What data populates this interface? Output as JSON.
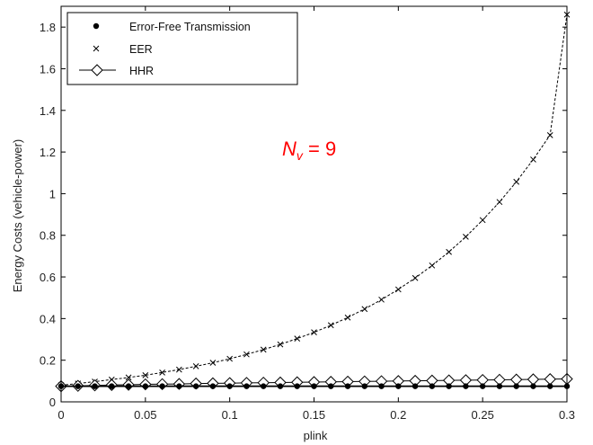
{
  "chart_data": {
    "type": "line",
    "title": "",
    "xlabel": "plink",
    "ylabel": "Energy Costs (vehicle-power)",
    "xlim": [
      0,
      0.3
    ],
    "ylim": [
      0,
      1.9
    ],
    "xticks": [
      0,
      0.05,
      0.1,
      0.15,
      0.2,
      0.25,
      0.3
    ],
    "xtick_labels": [
      "0",
      "0.05",
      "0.1",
      "0.15",
      "0.2",
      "0.25",
      "0.3"
    ],
    "yticks": [
      0,
      0.2,
      0.4,
      0.6,
      0.8,
      1.0,
      1.2,
      1.4,
      1.6,
      1.8
    ],
    "ytick_labels": [
      "0",
      "0.2",
      "0.4",
      "0.6",
      "0.8",
      "1",
      "1.2",
      "1.4",
      "1.6",
      "1.8"
    ],
    "grid": false,
    "legend_position": "top-left",
    "annotation": {
      "prefix": "N",
      "subscript": "v",
      "suffix": " = 9",
      "color": "#ff0000"
    },
    "series": [
      {
        "name": "Error-Free Transmission",
        "marker": "dot",
        "line": "solid",
        "x": [
          0,
          0.01,
          0.02,
          0.03,
          0.04,
          0.05,
          0.06,
          0.07,
          0.08,
          0.09,
          0.1,
          0.11,
          0.12,
          0.13,
          0.14,
          0.15,
          0.16,
          0.17,
          0.18,
          0.19,
          0.2,
          0.21,
          0.22,
          0.23,
          0.24,
          0.25,
          0.26,
          0.27,
          0.28,
          0.29,
          0.3
        ],
        "y": [
          0.075,
          0.075,
          0.075,
          0.075,
          0.075,
          0.075,
          0.075,
          0.075,
          0.075,
          0.075,
          0.075,
          0.075,
          0.075,
          0.075,
          0.075,
          0.075,
          0.075,
          0.075,
          0.075,
          0.075,
          0.075,
          0.075,
          0.075,
          0.075,
          0.075,
          0.075,
          0.075,
          0.075,
          0.075,
          0.075,
          0.075
        ]
      },
      {
        "name": "EER",
        "marker": "x",
        "line": "dashed",
        "x": [
          0,
          0.01,
          0.02,
          0.03,
          0.04,
          0.05,
          0.06,
          0.07,
          0.08,
          0.09,
          0.1,
          0.11,
          0.12,
          0.13,
          0.14,
          0.15,
          0.16,
          0.17,
          0.18,
          0.19,
          0.2,
          0.21,
          0.22,
          0.23,
          0.24,
          0.25,
          0.26,
          0.27,
          0.28,
          0.29,
          0.3
        ],
        "y": [
          0.08,
          0.088,
          0.097,
          0.107,
          0.117,
          0.128,
          0.141,
          0.155,
          0.171,
          0.188,
          0.207,
          0.228,
          0.251,
          0.276,
          0.304,
          0.334,
          0.368,
          0.405,
          0.446,
          0.491,
          0.54,
          0.595,
          0.655,
          0.72,
          0.793,
          0.873,
          0.96,
          1.057,
          1.164,
          1.281,
          1.86
        ]
      },
      {
        "name": "HHR",
        "marker": "diamond",
        "line": "solid",
        "x": [
          0,
          0.01,
          0.02,
          0.03,
          0.04,
          0.05,
          0.06,
          0.07,
          0.08,
          0.09,
          0.1,
          0.11,
          0.12,
          0.13,
          0.14,
          0.15,
          0.16,
          0.17,
          0.18,
          0.19,
          0.2,
          0.21,
          0.22,
          0.23,
          0.24,
          0.25,
          0.26,
          0.27,
          0.28,
          0.29,
          0.3
        ],
        "y": [
          0.075,
          0.077,
          0.079,
          0.081,
          0.082,
          0.084,
          0.085,
          0.086,
          0.088,
          0.089,
          0.09,
          0.091,
          0.092,
          0.093,
          0.094,
          0.095,
          0.096,
          0.097,
          0.098,
          0.099,
          0.1,
          0.101,
          0.102,
          0.103,
          0.104,
          0.105,
          0.106,
          0.107,
          0.108,
          0.109,
          0.11
        ]
      }
    ]
  }
}
